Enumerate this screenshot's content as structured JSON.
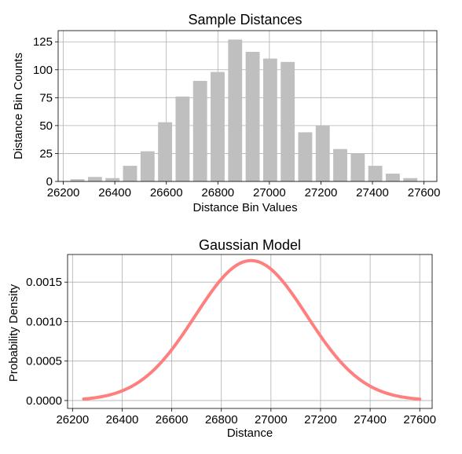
{
  "chart_data": [
    {
      "type": "bar",
      "title": "Sample Distances",
      "xlabel": "Distance Bin Values",
      "ylabel": "Distance Bin Counts",
      "xlim": [
        26180,
        27650
      ],
      "ylim": [
        0,
        135
      ],
      "xticks": [
        26200,
        26400,
        26600,
        26800,
        27000,
        27200,
        27400,
        27600
      ],
      "yticks": [
        0,
        25,
        50,
        75,
        100,
        125
      ],
      "grid": true,
      "bar_color": "#bfbfbf",
      "bin_width": 68,
      "x": [
        26255,
        26323,
        26391,
        26459,
        26527,
        26595,
        26663,
        26731,
        26799,
        26867,
        26935,
        27003,
        27071,
        27139,
        27207,
        27275,
        27343,
        27411,
        27479,
        27547
      ],
      "values": [
        2,
        4,
        3,
        14,
        27,
        53,
        76,
        90,
        98,
        127,
        116,
        110,
        107,
        44,
        50,
        29,
        25,
        14,
        7,
        3
      ]
    },
    {
      "type": "line",
      "title": "Gaussian Model",
      "xlabel": "Distance",
      "ylabel": "Probability Density",
      "xlim": [
        26180,
        27650
      ],
      "ylim": [
        -0.0001,
        0.00185
      ],
      "xticks": [
        26200,
        26400,
        26600,
        26800,
        27000,
        27200,
        27400,
        27600
      ],
      "yticks": [
        0.0,
        0.0005,
        0.001,
        0.0015
      ],
      "ytick_labels": [
        "0.0000",
        "0.0005",
        "0.0010",
        "0.0015"
      ],
      "grid": true,
      "line_color": "#ff7f7f",
      "mean": 26920,
      "std": 225,
      "x_range": [
        26245,
        27600
      ],
      "series": [
        {
          "x": [
            26245,
            26300,
            26350,
            26400,
            26450,
            26500,
            26550,
            26600,
            26650,
            26700,
            26750,
            26800,
            26850,
            26900,
            26920,
            26950,
            27000,
            27050,
            27100,
            27150,
            27200,
            27250,
            27300,
            27350,
            27400,
            27450,
            27500,
            27550,
            27600
          ],
          "y": [
            1.95e-05,
            3.96e-05,
            7.03e-05,
            0.000123,
            0.000193,
            0.000295,
            0.000448,
            0.000643,
            0.000855,
            0.001081,
            0.001331,
            0.001536,
            0.001688,
            0.001769,
            0.001773,
            0.001762,
            0.001659,
            0.001497,
            0.001264,
            0.001023,
            0.000802,
            0.000593,
            0.000411,
            0.000273,
            0.000172,
            0.000103,
            5.9e-05,
            3.18e-05,
            1.64e-05
          ]
        }
      ]
    }
  ]
}
